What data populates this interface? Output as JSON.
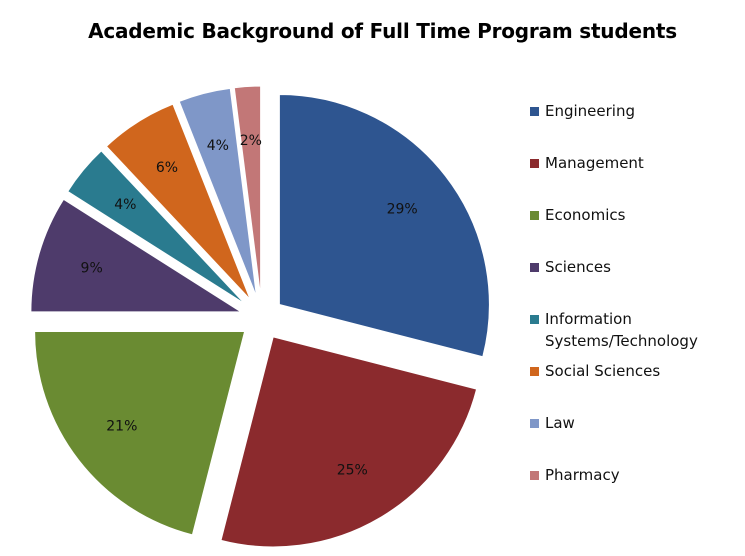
{
  "chart_data": {
    "type": "pie",
    "title": "Academic Background of Full Time Program students",
    "legend_placement": "right",
    "exploded": true,
    "slices": [
      {
        "label": "Engineering",
        "value": 29,
        "value_label": "29%",
        "color": "#2E5590"
      },
      {
        "label": "Management",
        "value": 25,
        "value_label": "25%",
        "color": "#8B2A2D"
      },
      {
        "label": "Economics",
        "value": 21,
        "value_label": "21%",
        "color": "#6A8B32"
      },
      {
        "label": "Sciences",
        "value": 9,
        "value_label": "9%",
        "color": "#4E3B6B"
      },
      {
        "label": "Information Systems/Technology",
        "value": 4,
        "value_label": "4%",
        "color": "#2A7B8F"
      },
      {
        "label": "Social Sciences",
        "value": 6,
        "value_label": "6%",
        "color": "#D0661D"
      },
      {
        "label": "Law",
        "value": 4,
        "value_label": "4%",
        "color": "#7F97C8"
      },
      {
        "label": "Pharmacy",
        "value": 2,
        "value_label": "2%",
        "color": "#C27777"
      }
    ]
  }
}
